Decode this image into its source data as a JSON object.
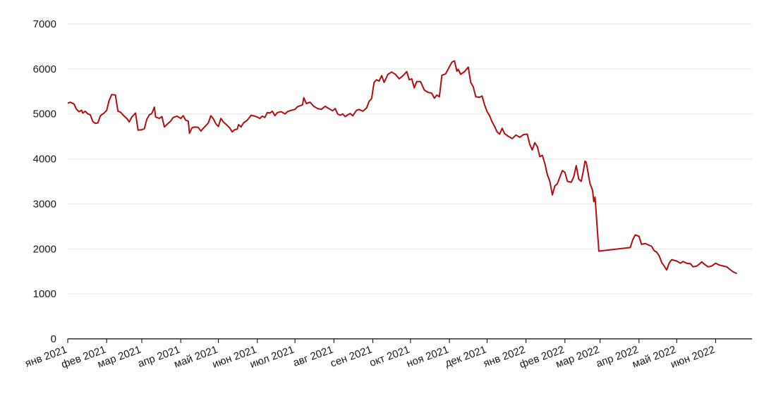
{
  "chart_data": {
    "type": "line",
    "title": "",
    "xlabel": "",
    "ylabel": "",
    "ylim": [
      0,
      7000
    ],
    "yticks": [
      0,
      1000,
      2000,
      3000,
      4000,
      5000,
      6000,
      7000
    ],
    "y_tick_labels": [
      "0",
      "1000",
      "2000",
      "3000",
      "4000",
      "5000",
      "6000",
      "7000"
    ],
    "x_range": [
      "2021-01-01",
      "2022-06-30"
    ],
    "x_ticks": [
      {
        "date": "2021-01-01",
        "label": "янв 2021"
      },
      {
        "date": "2021-02-01",
        "label": "фев 2021"
      },
      {
        "date": "2021-03-01",
        "label": "мар 2021"
      },
      {
        "date": "2021-04-01",
        "label": "апр 2021"
      },
      {
        "date": "2021-05-01",
        "label": "май 2021"
      },
      {
        "date": "2021-06-01",
        "label": "июн 2021"
      },
      {
        "date": "2021-07-01",
        "label": "июл 2021"
      },
      {
        "date": "2021-08-01",
        "label": "авг 2021"
      },
      {
        "date": "2021-09-01",
        "label": "сен 2021"
      },
      {
        "date": "2021-10-01",
        "label": "окт 2021"
      },
      {
        "date": "2021-11-01",
        "label": "ноя 2021"
      },
      {
        "date": "2021-12-01",
        "label": "дек 2021"
      },
      {
        "date": "2022-01-01",
        "label": "янв 2022"
      },
      {
        "date": "2022-02-01",
        "label": "фев 2022"
      },
      {
        "date": "2022-03-01",
        "label": "мар 2022"
      },
      {
        "date": "2022-04-01",
        "label": "апр 2022"
      },
      {
        "date": "2022-05-01",
        "label": "май 2022"
      },
      {
        "date": "2022-06-01",
        "label": "июн 2022"
      }
    ],
    "grid": true,
    "series": [
      {
        "color": "#b30d0d",
        "points": [
          [
            "2021-01-01",
            5240
          ],
          [
            "2021-01-03",
            5260
          ],
          [
            "2021-01-06",
            5220
          ],
          [
            "2021-01-08",
            5100
          ],
          [
            "2021-01-10",
            5050
          ],
          [
            "2021-01-12",
            5080
          ],
          [
            "2021-01-13",
            5020
          ],
          [
            "2021-01-15",
            5060
          ],
          [
            "2021-01-17",
            5000
          ],
          [
            "2021-01-19",
            4980
          ],
          [
            "2021-01-21",
            4830
          ],
          [
            "2021-01-23",
            4790
          ],
          [
            "2021-01-25",
            4800
          ],
          [
            "2021-01-27",
            4960
          ],
          [
            "2021-01-30",
            5020
          ],
          [
            "2021-02-01",
            5080
          ],
          [
            "2021-02-03",
            5300
          ],
          [
            "2021-02-05",
            5430
          ],
          [
            "2021-02-08",
            5420
          ],
          [
            "2021-02-10",
            5060
          ],
          [
            "2021-02-12",
            5040
          ],
          [
            "2021-02-15",
            4950
          ],
          [
            "2021-02-17",
            4900
          ],
          [
            "2021-02-19",
            4820
          ],
          [
            "2021-02-21",
            4930
          ],
          [
            "2021-02-24",
            5020
          ],
          [
            "2021-02-26",
            4640
          ],
          [
            "2021-03-01",
            4650
          ],
          [
            "2021-03-03",
            4670
          ],
          [
            "2021-03-05",
            4880
          ],
          [
            "2021-03-07",
            4980
          ],
          [
            "2021-03-09",
            5010
          ],
          [
            "2021-03-11",
            5150
          ],
          [
            "2021-03-12",
            4930
          ],
          [
            "2021-03-15",
            4900
          ],
          [
            "2021-03-17",
            4940
          ],
          [
            "2021-03-19",
            4710
          ],
          [
            "2021-03-22",
            4790
          ],
          [
            "2021-03-24",
            4840
          ],
          [
            "2021-03-26",
            4920
          ],
          [
            "2021-03-29",
            4950
          ],
          [
            "2021-04-01",
            4900
          ],
          [
            "2021-04-03",
            4960
          ],
          [
            "2021-04-05",
            4860
          ],
          [
            "2021-04-07",
            4840
          ],
          [
            "2021-04-08",
            4570
          ],
          [
            "2021-04-10",
            4690
          ],
          [
            "2021-04-12",
            4710
          ],
          [
            "2021-04-15",
            4700
          ],
          [
            "2021-04-17",
            4620
          ],
          [
            "2021-04-20",
            4710
          ],
          [
            "2021-04-23",
            4800
          ],
          [
            "2021-04-25",
            4960
          ],
          [
            "2021-04-27",
            4890
          ],
          [
            "2021-04-29",
            4780
          ],
          [
            "2021-05-01",
            4720
          ],
          [
            "2021-05-03",
            4900
          ],
          [
            "2021-05-05",
            4820
          ],
          [
            "2021-05-07",
            4770
          ],
          [
            "2021-05-10",
            4690
          ],
          [
            "2021-05-12",
            4600
          ],
          [
            "2021-05-14",
            4650
          ],
          [
            "2021-05-16",
            4660
          ],
          [
            "2021-05-17",
            4760
          ],
          [
            "2021-05-19",
            4710
          ],
          [
            "2021-05-21",
            4800
          ],
          [
            "2021-05-24",
            4860
          ],
          [
            "2021-05-27",
            4970
          ],
          [
            "2021-05-30",
            4950
          ],
          [
            "2021-06-01",
            4930
          ],
          [
            "2021-06-03",
            4900
          ],
          [
            "2021-06-05",
            4950
          ],
          [
            "2021-06-07",
            4920
          ],
          [
            "2021-06-09",
            5030
          ],
          [
            "2021-06-11",
            5020
          ],
          [
            "2021-06-13",
            5060
          ],
          [
            "2021-06-15",
            4960
          ],
          [
            "2021-06-17",
            5030
          ],
          [
            "2021-06-20",
            5050
          ],
          [
            "2021-06-23",
            5000
          ],
          [
            "2021-06-25",
            5050
          ],
          [
            "2021-06-28",
            5080
          ],
          [
            "2021-07-01",
            5100
          ],
          [
            "2021-07-03",
            5160
          ],
          [
            "2021-07-05",
            5180
          ],
          [
            "2021-07-07",
            5200
          ],
          [
            "2021-07-08",
            5360
          ],
          [
            "2021-07-10",
            5230
          ],
          [
            "2021-07-13",
            5260
          ],
          [
            "2021-07-16",
            5170
          ],
          [
            "2021-07-19",
            5120
          ],
          [
            "2021-07-22",
            5100
          ],
          [
            "2021-07-25",
            5170
          ],
          [
            "2021-07-28",
            5120
          ],
          [
            "2021-07-31",
            5070
          ],
          [
            "2021-08-02",
            5120
          ],
          [
            "2021-08-04",
            5000
          ],
          [
            "2021-08-06",
            4970
          ],
          [
            "2021-08-08",
            5000
          ],
          [
            "2021-08-10",
            4940
          ],
          [
            "2021-08-12",
            4980
          ],
          [
            "2021-08-14",
            5010
          ],
          [
            "2021-08-16",
            4960
          ],
          [
            "2021-08-19",
            5080
          ],
          [
            "2021-08-21",
            5100
          ],
          [
            "2021-08-24",
            5060
          ],
          [
            "2021-08-27",
            5130
          ],
          [
            "2021-08-29",
            5280
          ],
          [
            "2021-08-31",
            5340
          ],
          [
            "2021-09-02",
            5700
          ],
          [
            "2021-09-04",
            5760
          ],
          [
            "2021-09-06",
            5730
          ],
          [
            "2021-09-08",
            5850
          ],
          [
            "2021-09-10",
            5700
          ],
          [
            "2021-09-13",
            5880
          ],
          [
            "2021-09-16",
            5930
          ],
          [
            "2021-09-19",
            5880
          ],
          [
            "2021-09-22",
            5780
          ],
          [
            "2021-09-25",
            5850
          ],
          [
            "2021-09-28",
            5940
          ],
          [
            "2021-09-30",
            5760
          ],
          [
            "2021-10-02",
            5780
          ],
          [
            "2021-10-04",
            5580
          ],
          [
            "2021-10-06",
            5720
          ],
          [
            "2021-10-09",
            5720
          ],
          [
            "2021-10-12",
            5530
          ],
          [
            "2021-10-15",
            5480
          ],
          [
            "2021-10-18",
            5460
          ],
          [
            "2021-10-20",
            5350
          ],
          [
            "2021-10-22",
            5420
          ],
          [
            "2021-10-24",
            5380
          ],
          [
            "2021-10-26",
            5860
          ],
          [
            "2021-10-29",
            5890
          ],
          [
            "2021-11-01",
            6050
          ],
          [
            "2021-11-03",
            6150
          ],
          [
            "2021-11-05",
            6180
          ],
          [
            "2021-11-07",
            5950
          ],
          [
            "2021-11-08",
            5990
          ],
          [
            "2021-11-10",
            5880
          ],
          [
            "2021-11-13",
            5940
          ],
          [
            "2021-11-16",
            6040
          ],
          [
            "2021-11-18",
            5700
          ],
          [
            "2021-11-20",
            5600
          ],
          [
            "2021-11-22",
            5380
          ],
          [
            "2021-11-25",
            5370
          ],
          [
            "2021-11-27",
            5400
          ],
          [
            "2021-11-29",
            5200
          ],
          [
            "2021-12-01",
            5050
          ],
          [
            "2021-12-03",
            4960
          ],
          [
            "2021-12-05",
            4820
          ],
          [
            "2021-12-07",
            4720
          ],
          [
            "2021-12-09",
            4600
          ],
          [
            "2021-12-11",
            4550
          ],
          [
            "2021-12-13",
            4680
          ],
          [
            "2021-12-15",
            4560
          ],
          [
            "2021-12-18",
            4500
          ],
          [
            "2021-12-21",
            4450
          ],
          [
            "2021-12-24",
            4530
          ],
          [
            "2021-12-27",
            4480
          ],
          [
            "2021-12-30",
            4540
          ],
          [
            "2022-01-02",
            4550
          ],
          [
            "2022-01-04",
            4320
          ],
          [
            "2022-01-06",
            4200
          ],
          [
            "2022-01-08",
            4360
          ],
          [
            "2022-01-10",
            4270
          ],
          [
            "2022-01-12",
            4050
          ],
          [
            "2022-01-14",
            4080
          ],
          [
            "2022-01-16",
            3900
          ],
          [
            "2022-01-18",
            3650
          ],
          [
            "2022-01-20",
            3500
          ],
          [
            "2022-01-22",
            3200
          ],
          [
            "2022-01-24",
            3400
          ],
          [
            "2022-01-26",
            3450
          ],
          [
            "2022-01-28",
            3600
          ],
          [
            "2022-01-30",
            3740
          ],
          [
            "2022-02-01",
            3700
          ],
          [
            "2022-02-03",
            3500
          ],
          [
            "2022-02-06",
            3480
          ],
          [
            "2022-02-08",
            3600
          ],
          [
            "2022-02-10",
            3850
          ],
          [
            "2022-02-12",
            3550
          ],
          [
            "2022-02-14",
            3500
          ],
          [
            "2022-02-16",
            3780
          ],
          [
            "2022-02-17",
            3950
          ],
          [
            "2022-02-18",
            3920
          ],
          [
            "2022-02-20",
            3600
          ],
          [
            "2022-02-21",
            3450
          ],
          [
            "2022-02-23",
            3300
          ],
          [
            "2022-02-24",
            3050
          ],
          [
            "2022-02-25",
            3150
          ],
          [
            "2022-02-28",
            1950
          ],
          [
            "2022-03-25",
            2030
          ],
          [
            "2022-03-27",
            2200
          ],
          [
            "2022-03-29",
            2310
          ],
          [
            "2022-04-01",
            2280
          ],
          [
            "2022-04-03",
            2100
          ],
          [
            "2022-04-06",
            2120
          ],
          [
            "2022-04-09",
            2080
          ],
          [
            "2022-04-11",
            2060
          ],
          [
            "2022-04-13",
            1960
          ],
          [
            "2022-04-15",
            1930
          ],
          [
            "2022-04-17",
            1850
          ],
          [
            "2022-04-19",
            1700
          ],
          [
            "2022-04-21",
            1620
          ],
          [
            "2022-04-23",
            1530
          ],
          [
            "2022-04-25",
            1680
          ],
          [
            "2022-04-27",
            1760
          ],
          [
            "2022-05-01",
            1730
          ],
          [
            "2022-05-04",
            1680
          ],
          [
            "2022-05-06",
            1720
          ],
          [
            "2022-05-09",
            1680
          ],
          [
            "2022-05-12",
            1670
          ],
          [
            "2022-05-14",
            1600
          ],
          [
            "2022-05-17",
            1620
          ],
          [
            "2022-05-19",
            1660
          ],
          [
            "2022-05-21",
            1710
          ],
          [
            "2022-05-23",
            1660
          ],
          [
            "2022-05-26",
            1600
          ],
          [
            "2022-05-29",
            1620
          ],
          [
            "2022-06-01",
            1680
          ],
          [
            "2022-06-04",
            1640
          ],
          [
            "2022-06-07",
            1620
          ],
          [
            "2022-06-10",
            1600
          ],
          [
            "2022-06-12",
            1550
          ],
          [
            "2022-06-15",
            1490
          ],
          [
            "2022-06-18",
            1450
          ]
        ]
      }
    ]
  }
}
